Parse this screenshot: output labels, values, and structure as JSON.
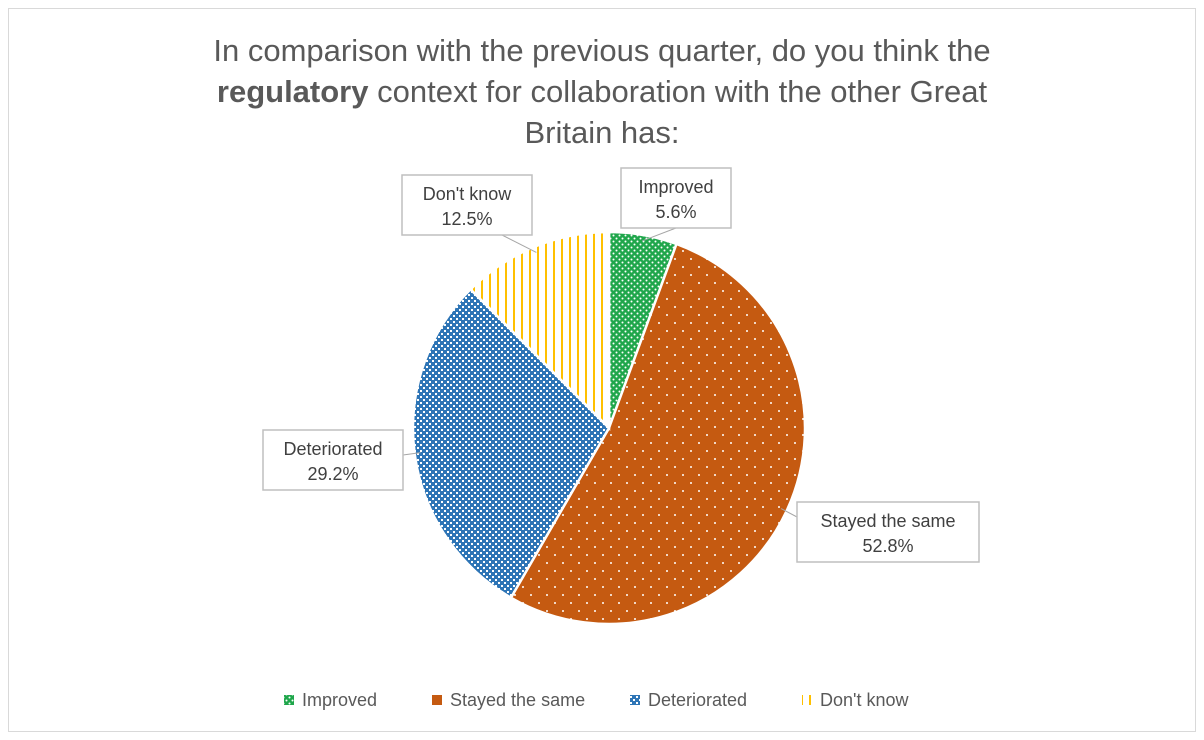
{
  "title": {
    "line1": "In comparison with the previous quarter, do you think the",
    "line2_bold": "regulatory",
    "line2_rest": " context for collaboration with the other Great",
    "line3": "Britain has:"
  },
  "chart_data": {
    "type": "pie",
    "title": "In comparison with the previous quarter, do you think the regulatory context for collaboration with the other Great Britain has:",
    "categories": [
      "Improved",
      "Stayed the same",
      "Deteriorated",
      "Don't know"
    ],
    "values": [
      5.6,
      52.8,
      29.2,
      12.5
    ],
    "value_labels": [
      "5.6%",
      "52.8%",
      "29.2%",
      "12.5%"
    ],
    "colors": [
      "#1fa64b",
      "#c55a11",
      "#2e75b6",
      "#ffc000"
    ],
    "patterns": [
      "dots-dense",
      "dots-sparse",
      "checker",
      "vertical-lines"
    ],
    "legend_placement": "bottom",
    "grid": false
  }
}
